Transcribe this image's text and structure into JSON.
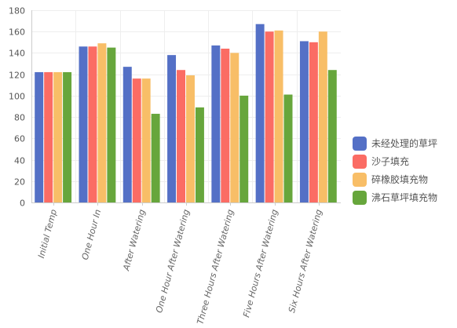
{
  "chart_data": {
    "type": "bar",
    "categories": [
      "Initial Temp",
      "One Hour In",
      "After Watering",
      "One Hour After Watering",
      "Three Hours After Watering",
      "Five Hours After Watering",
      "Six Hours After Watering"
    ],
    "series": [
      {
        "name": "未经处理的草坪",
        "color": "#5470c6",
        "values": [
          122,
          146,
          127,
          138,
          147,
          167,
          151
        ]
      },
      {
        "name": "沙子填充",
        "color": "#fb6c64",
        "values": [
          122,
          146,
          116,
          124,
          144,
          160,
          150
        ]
      },
      {
        "name": "碎橡胶填充物",
        "color": "#f8be67",
        "values": [
          122,
          149,
          116,
          119,
          140,
          161,
          160
        ]
      },
      {
        "name": "沸石草坪填充物",
        "color": "#67a63c",
        "values": [
          122,
          145,
          83,
          89,
          100,
          101,
          124
        ]
      }
    ],
    "ylim": [
      0,
      180
    ],
    "yticks": [
      0,
      20,
      40,
      60,
      80,
      100,
      120,
      140,
      160,
      180
    ],
    "grid": true,
    "legend_position": "right",
    "title": "",
    "xlabel": "",
    "ylabel": ""
  }
}
